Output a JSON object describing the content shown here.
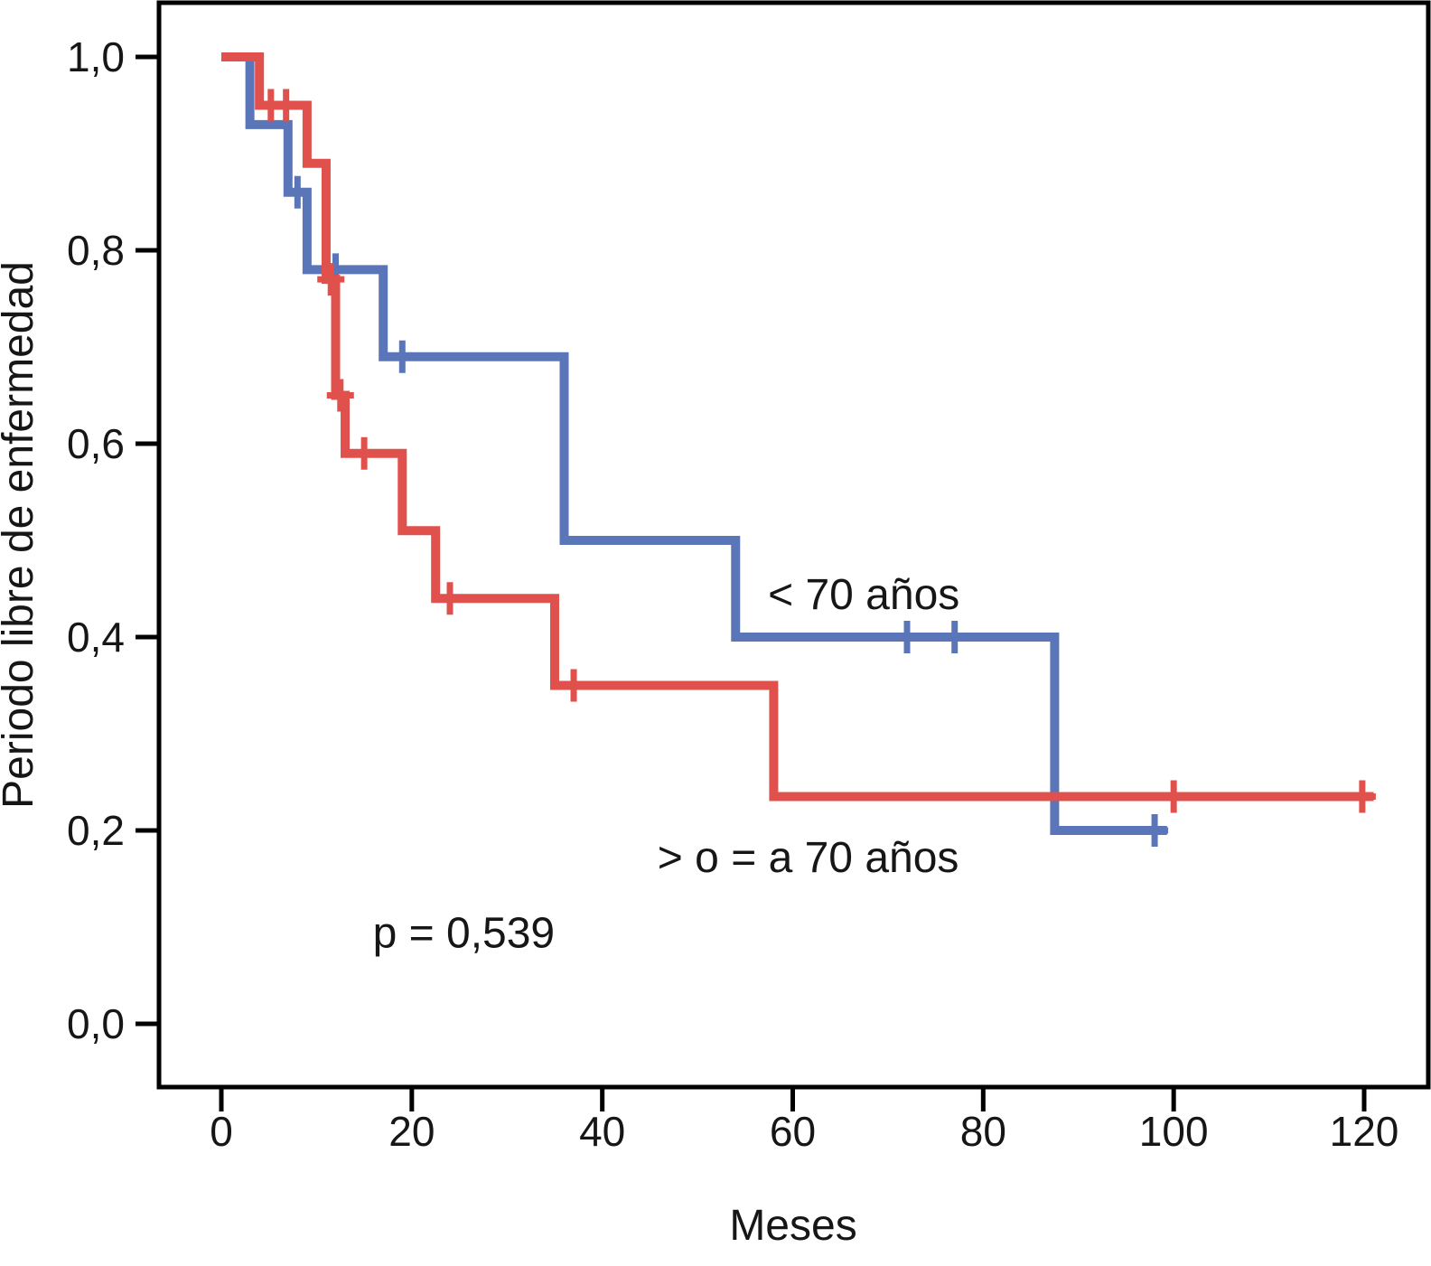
{
  "chart_data": {
    "type": "line",
    "subtype": "kaplan-meier-step",
    "title": "",
    "xlabel": "Meses",
    "ylabel": "Periodo libre de enfermedad",
    "xlim": [
      0,
      120
    ],
    "ylim": [
      0.0,
      1.0
    ],
    "grid": false,
    "legend_position": "labels-on-plot",
    "background_color": "#ffffff",
    "axis_color": "#000000",
    "x_ticks": [
      {
        "value": 0,
        "label": "0"
      },
      {
        "value": 20,
        "label": "20"
      },
      {
        "value": 40,
        "label": "40"
      },
      {
        "value": 60,
        "label": "60"
      },
      {
        "value": 80,
        "label": "80"
      },
      {
        "value": 100,
        "label": "100"
      },
      {
        "value": 120,
        "label": "120"
      }
    ],
    "y_ticks": [
      {
        "value": 0.0,
        "label": "0,0"
      },
      {
        "value": 0.2,
        "label": "0,2"
      },
      {
        "value": 0.4,
        "label": "0,4"
      },
      {
        "value": 0.6,
        "label": "0,6"
      },
      {
        "value": 0.8,
        "label": "0,8"
      },
      {
        "value": 1.0,
        "label": "1,0"
      }
    ],
    "series": [
      {
        "name": "< 70 años",
        "color": "#5a76b8",
        "start": {
          "t": 0,
          "s": 1.0
        },
        "steps": [
          [
            3,
            0.93
          ],
          [
            7,
            0.86
          ],
          [
            9,
            0.78
          ],
          [
            17,
            0.69
          ],
          [
            36,
            0.5
          ],
          [
            54,
            0.4
          ],
          [
            87.5,
            0.2
          ]
        ],
        "end_t": 99.3,
        "censors": [
          [
            8,
            0.86
          ],
          [
            12,
            0.78
          ],
          [
            19,
            0.69
          ],
          [
            72,
            0.4
          ],
          [
            77,
            0.4
          ],
          [
            98,
            0.2
          ]
        ],
        "label": {
          "text": "< 70 años",
          "t": 57.4,
          "s": 0.429
        }
      },
      {
        "name": "> o = a 70 años",
        "color": "#e0504c",
        "start": {
          "t": 0,
          "s": 1.0
        },
        "steps": [
          [
            4,
            0.95
          ],
          [
            9,
            0.89
          ],
          [
            11,
            0.77
          ],
          [
            12,
            0.65
          ],
          [
            13,
            0.59
          ],
          [
            19,
            0.51
          ],
          [
            22.5,
            0.44
          ],
          [
            35,
            0.35
          ],
          [
            58,
            0.235
          ]
        ],
        "end_t": 121,
        "censors": [
          [
            5.2,
            0.95
          ],
          [
            6.8,
            0.95
          ],
          [
            11.5,
            0.77
          ],
          [
            12.5,
            0.65
          ],
          [
            15,
            0.59
          ],
          [
            24,
            0.44
          ],
          [
            37,
            0.35
          ],
          [
            100,
            0.235
          ],
          [
            119.8,
            0.235
          ]
        ],
        "label": {
          "text": "> o = a 70 años",
          "t": 45.8,
          "s": 0.157
        }
      }
    ],
    "annotations": [
      {
        "name": "p-value",
        "text": "p = 0,539",
        "t": 15.9,
        "s": 0.079
      }
    ]
  }
}
